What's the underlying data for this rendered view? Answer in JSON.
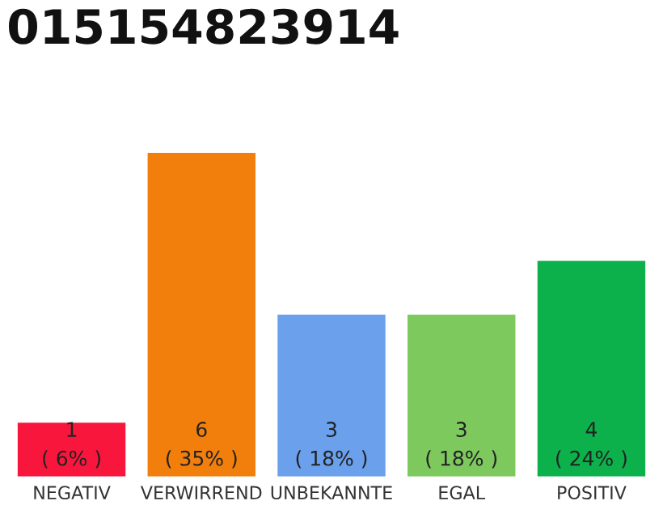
{
  "chart_data": {
    "type": "bar",
    "title": "015154823914",
    "categories": [
      "NEGATIV",
      "VERWIRREND",
      "UNBEKANNTE",
      "EGAL",
      "POSITIV"
    ],
    "values": [
      1,
      6,
      3,
      3,
      4
    ],
    "colors": [
      "#f9163d",
      "#f27f0c",
      "#6aa0ec",
      "#7dc95e",
      "#0db14b"
    ],
    "value_labels": [
      "1\n( 6% )",
      "6\n( 35% )",
      "3\n( 18% )",
      "3\n( 18% )",
      "4\n( 24% )"
    ],
    "grid": false,
    "tick_labels": "x"
  }
}
